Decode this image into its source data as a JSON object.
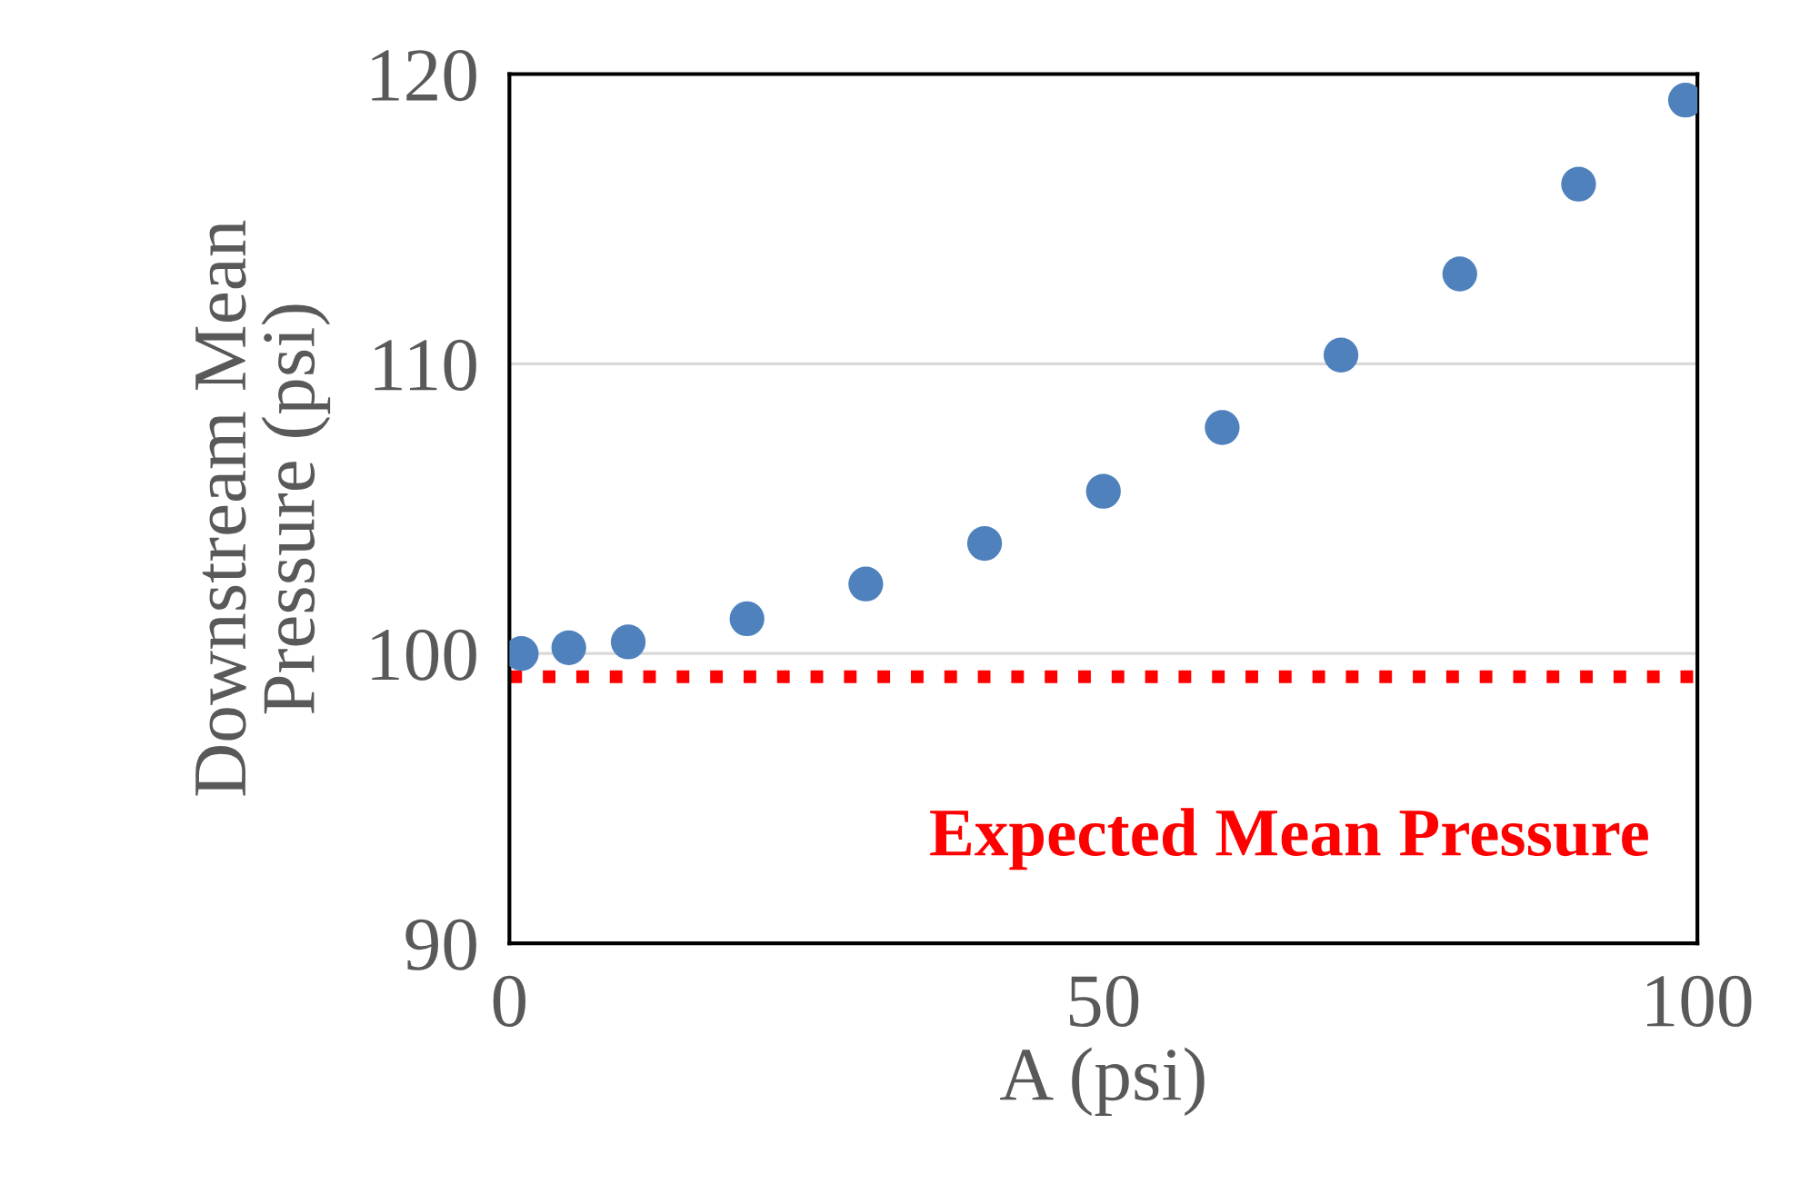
{
  "chart_data": {
    "type": "scatter",
    "xlabel": "A (psi)",
    "ylabel": "Downstream Mean\nPressure (psi)",
    "x": [
      1,
      5,
      10,
      20,
      30,
      40,
      50,
      60,
      70,
      80,
      90,
      99
    ],
    "series": [
      {
        "color": "#4f81bd",
        "values": [
          100.0,
          100.2,
          100.4,
          101.2,
          102.4,
          103.8,
          105.6,
          107.8,
          110.3,
          113.1,
          116.2,
          119.1
        ]
      }
    ],
    "xlim": [
      0,
      100
    ],
    "xticks": [
      0,
      50,
      100
    ],
    "ylim": [
      90,
      120
    ],
    "yticks": [
      90,
      100,
      110,
      120
    ],
    "ref_lines": [
      {
        "axis": "y",
        "value": 99.2,
        "label": "Expected Mean Pressure",
        "color": "#ff0000",
        "line_style": "dotted"
      }
    ],
    "grid": "y",
    "marker": "circle"
  }
}
